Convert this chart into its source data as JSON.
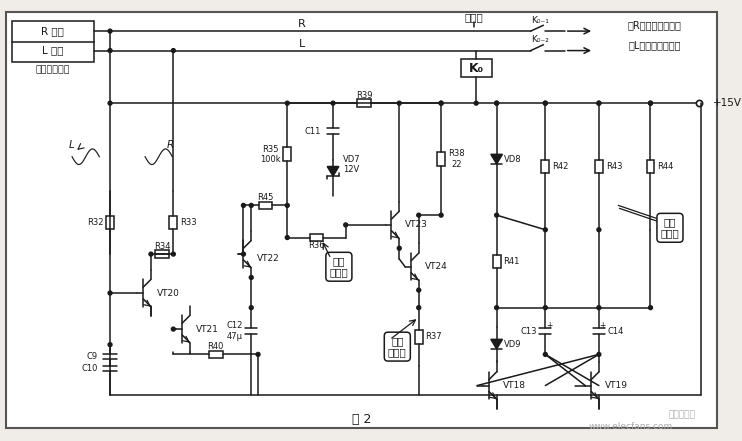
{
  "bg_color": "#f0ede8",
  "line_color": "#1a1a1a",
  "fig_width": 7.42,
  "fig_height": 4.41,
  "dpi": 100,
  "labels": {
    "R_ch": "R 声道",
    "L_ch": "L 声道",
    "power_amp": "功率放大电路",
    "relay": "继电器",
    "K01": "K₀₋₁",
    "K02": "K₀₋₂",
    "K0": "K₀",
    "to_R": "至R音筱（扬声器）",
    "to_L": "至L音筱（扬声器）",
    "plus15V": "+15V",
    "R35": "R35\n100k",
    "R32": "R32",
    "R33": "R33",
    "R34": "R34",
    "R36": "R36",
    "R37": "R37",
    "R38": "R38\n22",
    "R39": "R39",
    "R40": "R40",
    "R41": "R41",
    "R42": "R42",
    "R43": "R43",
    "R44": "R44",
    "R45": "R45",
    "C9": "C9",
    "C10": "C10",
    "C11": "C11",
    "C12": "C12\n47μ",
    "C13": "C13",
    "C14": "C14",
    "VD7": "VD7\n12V",
    "VD8": "VD8",
    "VD9": "VD9",
    "VT18": "VT18",
    "VT19": "VT19",
    "VT20": "VT20",
    "VT21": "VT21",
    "VT22": "VT22",
    "VT23": "VT23",
    "VT24": "VT24",
    "key_detect": "关键\n检测点",
    "aux_detect": "辅助\n检测点",
    "eye_detect": "目击\n检测点",
    "fig2": "图 2",
    "watermark": "www.elecfans.com",
    "watermark2": "电子发烧友",
    "R_label": "R",
    "L_label": "L",
    "L_wave": "L",
    "R_wave": "R"
  }
}
